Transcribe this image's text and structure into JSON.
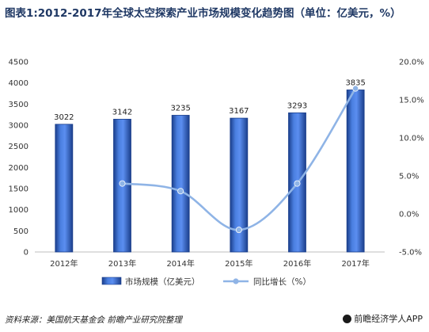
{
  "title": "图表1:2012-2017年全球太空探索产业市场规模变化趋势图（单位：亿美元，%）",
  "footer": {
    "source": "资料来源：美国航天基金会   前瞻产业研究院整理",
    "brand": "前瞻经济学人APP"
  },
  "colors": {
    "bar": "#3c6fd0",
    "bar_dark": "#1b3f8c",
    "line": "#8fb4e6",
    "title": "#1f3864"
  },
  "chart_data": {
    "type": "bar",
    "categories": [
      "2012年",
      "2013年",
      "2014年",
      "2015年",
      "2016年",
      "2017年"
    ],
    "series": [
      {
        "name": "市场规模（亿美元）",
        "type": "bar",
        "axis": "left",
        "values": [
          3022,
          3142,
          3235,
          3167,
          3293,
          3835
        ]
      },
      {
        "name": "同比增长（%）",
        "type": "line",
        "axis": "right",
        "smooth": true,
        "values": [
          null,
          4.0,
          3.0,
          -2.1,
          4.0,
          16.5
        ]
      }
    ],
    "y_left": {
      "min": 0,
      "max": 4500,
      "step": 500,
      "ticks": [
        "0",
        "500",
        "1000",
        "1500",
        "2000",
        "2500",
        "3000",
        "3500",
        "4000",
        "4500"
      ]
    },
    "y_right": {
      "min": -5,
      "max": 20,
      "step": 5,
      "ticks": [
        "-5.0%",
        "0.0%",
        "5.0%",
        "10.0%",
        "15.0%",
        "20.0%"
      ]
    },
    "legend_position": "bottom",
    "grid": false
  }
}
